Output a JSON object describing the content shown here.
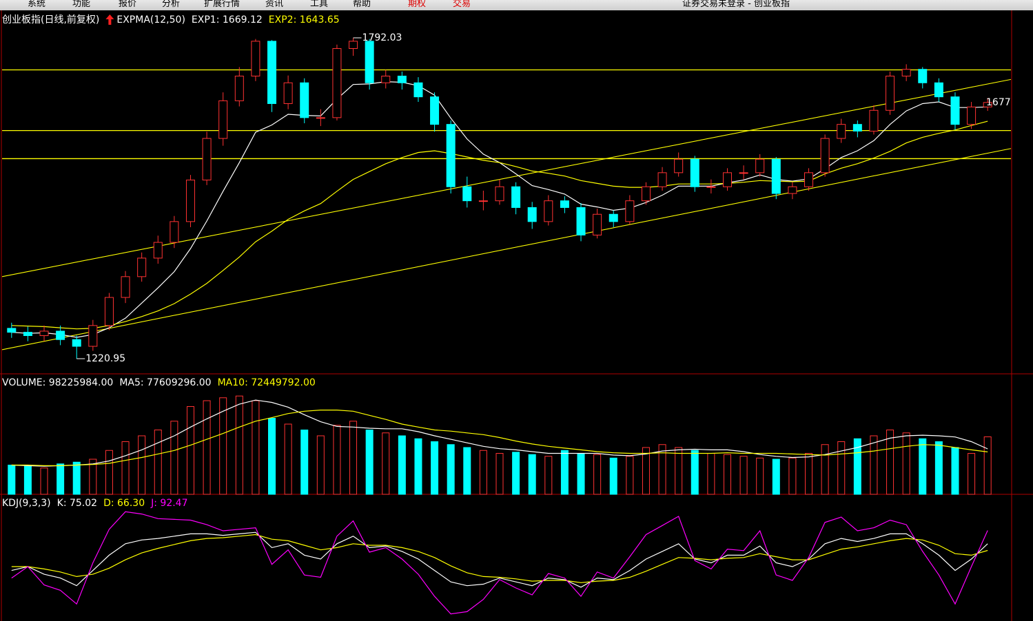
{
  "menu": {
    "items": [
      "系统",
      "功能",
      "报价",
      "分析",
      "扩展行情",
      "资讯",
      "工具",
      "帮助",
      "期权",
      "交易"
    ],
    "title": "证券交易未登录 - 创业板指"
  },
  "chart_data": [
    {
      "type": "candlestick",
      "title": "创业板指(日线,前复权)",
      "indicator": "EXPMA(12,50)",
      "ylim": [
        1194,
        1841
      ],
      "up_color": "#ff3232",
      "down_color": "#00ffff",
      "open": [
        1275,
        1268,
        1262,
        1270,
        1255,
        1243,
        1280,
        1330,
        1367,
        1400,
        1428,
        1465,
        1539,
        1613,
        1680,
        1724,
        1786,
        1675,
        1712,
        1650,
        1650,
        1773,
        1786,
        1712,
        1724,
        1712,
        1687,
        1638,
        1527,
        1502,
        1502,
        1527,
        1490,
        1465,
        1502,
        1490,
        1441,
        1478,
        1465,
        1502,
        1527,
        1552,
        1576,
        1527,
        1527,
        1552,
        1552,
        1576,
        1515,
        1527,
        1552,
        1613,
        1638,
        1626,
        1663,
        1724,
        1736,
        1712,
        1687,
        1638,
        1669
      ],
      "high": [
        1285,
        1278,
        1280,
        1280,
        1262,
        1290,
        1338,
        1377,
        1410,
        1440,
        1475,
        1548,
        1625,
        1695,
        1740,
        1790,
        1788,
        1725,
        1720,
        1665,
        1780,
        1792.03,
        1790,
        1735,
        1732,
        1722,
        1695,
        1645,
        1545,
        1520,
        1540,
        1535,
        1500,
        1512,
        1510,
        1498,
        1488,
        1485,
        1512,
        1535,
        1562,
        1588,
        1582,
        1540,
        1560,
        1565,
        1585,
        1580,
        1535,
        1560,
        1620,
        1648,
        1645,
        1672,
        1732,
        1745,
        1740,
        1720,
        1695,
        1678,
        1685
      ],
      "low": [
        1258,
        1252,
        1252,
        1245,
        1220.95,
        1235,
        1272,
        1320,
        1358,
        1390,
        1418,
        1455,
        1530,
        1600,
        1670,
        1715,
        1660,
        1665,
        1640,
        1635,
        1645,
        1760,
        1700,
        1702,
        1700,
        1678,
        1625,
        1515,
        1490,
        1485,
        1495,
        1478,
        1452,
        1458,
        1480,
        1430,
        1435,
        1455,
        1460,
        1495,
        1520,
        1545,
        1518,
        1515,
        1520,
        1540,
        1545,
        1505,
        1505,
        1520,
        1545,
        1605,
        1615,
        1620,
        1655,
        1715,
        1702,
        1678,
        1628,
        1630,
        1662
      ],
      "close": [
        1268,
        1262,
        1270,
        1255,
        1243,
        1280,
        1330,
        1367,
        1400,
        1428,
        1465,
        1539,
        1613,
        1680,
        1724,
        1786,
        1675,
        1712,
        1650,
        1650,
        1773,
        1786,
        1712,
        1724,
        1712,
        1687,
        1638,
        1527,
        1502,
        1502,
        1527,
        1490,
        1465,
        1502,
        1490,
        1441,
        1478,
        1465,
        1502,
        1527,
        1552,
        1576,
        1527,
        1527,
        1552,
        1552,
        1576,
        1515,
        1527,
        1552,
        1613,
        1638,
        1626,
        1663,
        1724,
        1736,
        1712,
        1687,
        1638,
        1669,
        1677
      ],
      "series": [
        {
          "name": "EXP1: 1669.12",
          "color": "#ffffff",
          "values": [
            1268,
            1266,
            1267,
            1264,
            1259,
            1264,
            1276,
            1293,
            1320,
            1347,
            1376,
            1417,
            1466,
            1519,
            1570,
            1624,
            1637,
            1656,
            1654,
            1653,
            1683,
            1709,
            1710,
            1714,
            1713,
            1707,
            1690,
            1649,
            1612,
            1585,
            1570,
            1550,
            1529,
            1522,
            1514,
            1496,
            1491,
            1485,
            1489,
            1499,
            1512,
            1528,
            1528,
            1528,
            1534,
            1539,
            1548,
            1540,
            1537,
            1541,
            1559,
            1579,
            1591,
            1609,
            1638,
            1662,
            1675,
            1678,
            1668,
            1668,
            1669.12
          ]
        },
        {
          "name": "EXP2: 1643.65",
          "color": "#ffff00",
          "values": [
            1280,
            1279,
            1278,
            1276,
            1274,
            1275,
            1280,
            1287,
            1296,
            1306,
            1319,
            1336,
            1355,
            1378,
            1402,
            1429,
            1448,
            1469,
            1484,
            1497,
            1519,
            1540,
            1554,
            1568,
            1579,
            1588,
            1591,
            1586,
            1580,
            1574,
            1570,
            1563,
            1555,
            1551,
            1546,
            1538,
            1533,
            1528,
            1526,
            1526,
            1528,
            1532,
            1532,
            1532,
            1533,
            1535,
            1538,
            1537,
            1536,
            1537,
            1550,
            1560,
            1568,
            1578,
            1590,
            1605,
            1615,
            1622,
            1628,
            1636,
            1643.65
          ]
        }
      ],
      "hlines": [
        1735,
        1627,
        1577
      ],
      "hline_color": "#ffff00",
      "trendlines": [
        [
          1367,
          1718
        ],
        [
          1237,
          1595
        ]
      ]
    },
    {
      "type": "volume",
      "title": "VOLUME: 98225984.00",
      "ylim": [
        0,
        200000000
      ],
      "values": [
        50000000,
        48000000,
        45000000,
        52000000,
        55000000,
        60000000,
        75000000,
        90000000,
        100000000,
        110000000,
        125000000,
        150000000,
        160000000,
        165000000,
        168000000,
        160000000,
        130000000,
        120000000,
        110000000,
        100000000,
        118000000,
        125000000,
        110000000,
        105000000,
        100000000,
        95000000,
        90000000,
        85000000,
        80000000,
        75000000,
        70000000,
        72000000,
        68000000,
        65000000,
        75000000,
        70000000,
        68000000,
        62000000,
        65000000,
        80000000,
        85000000,
        80000000,
        75000000,
        70000000,
        68000000,
        65000000,
        62000000,
        60000000,
        62000000,
        70000000,
        85000000,
        90000000,
        95000000,
        100000000,
        110000000,
        105000000,
        95000000,
        90000000,
        80000000,
        70000000,
        98225984
      ],
      "series": [
        {
          "name": "MA5: 77609296.00",
          "color": "#ffffff",
          "values": [
            50000000,
            49000000,
            48000000,
            49000000,
            50000000,
            52000000,
            57000000,
            66000000,
            76000000,
            88000000,
            100000000,
            115000000,
            129000000,
            142000000,
            154000000,
            161000000,
            157000000,
            149000000,
            136000000,
            124000000,
            116000000,
            115000000,
            113000000,
            112000000,
            112000000,
            107000000,
            100000000,
            94000000,
            88000000,
            82000000,
            78000000,
            76000000,
            73000000,
            70000000,
            70000000,
            70000000,
            70000000,
            67000000,
            66000000,
            69000000,
            74000000,
            76000000,
            77000000,
            76000000,
            76000000,
            73000000,
            68000000,
            65000000,
            63000000,
            64000000,
            68000000,
            74000000,
            80000000,
            88000000,
            96000000,
            100000000,
            101000000,
            100000000,
            98000000,
            90000000,
            77609296
          ]
        },
        {
          "name": "MA10: 72449792.00",
          "color": "#ffff00",
          "values": [
            50000000,
            50000000,
            49000000,
            49000000,
            50000000,
            51000000,
            53000000,
            58000000,
            63000000,
            69000000,
            75000000,
            84000000,
            94000000,
            104000000,
            115000000,
            125000000,
            131000000,
            138000000,
            142000000,
            144000000,
            144000000,
            142000000,
            135000000,
            128000000,
            120000000,
            115000000,
            110000000,
            108000000,
            105000000,
            102000000,
            97000000,
            91000000,
            86000000,
            82000000,
            79000000,
            76000000,
            73000000,
            71000000,
            70000000,
            70000000,
            71000000,
            70000000,
            70000000,
            70000000,
            71000000,
            70000000,
            70000000,
            70000000,
            69000000,
            68000000,
            67000000,
            69000000,
            71000000,
            74000000,
            78000000,
            82000000,
            85000000,
            84000000,
            80000000,
            76000000,
            72449792
          ]
        }
      ]
    },
    {
      "type": "kdj",
      "title": "KDJ(9,3,3)",
      "ylim": [
        -20,
        120
      ],
      "series": [
        {
          "name": "K: 75.02",
          "color": "#ffffff",
          "values": [
            40,
            45,
            35,
            30,
            20,
            40,
            60,
            75,
            80,
            82,
            85,
            88,
            88,
            86,
            88,
            90,
            70,
            75,
            60,
            55,
            75,
            85,
            70,
            72,
            65,
            55,
            40,
            25,
            20,
            22,
            30,
            25,
            20,
            30,
            28,
            18,
            30,
            28,
            40,
            55,
            65,
            75,
            55,
            50,
            60,
            60,
            72,
            50,
            45,
            55,
            75,
            82,
            78,
            82,
            88,
            88,
            75,
            60,
            40,
            55,
            75.02
          ]
        },
        {
          "name": "D: 66.30",
          "color": "#ffff00",
          "values": [
            45,
            45,
            42,
            38,
            32,
            35,
            43,
            54,
            63,
            69,
            74,
            79,
            82,
            83,
            85,
            87,
            81,
            79,
            73,
            67,
            70,
            75,
            73,
            73,
            70,
            65,
            57,
            46,
            37,
            32,
            31,
            29,
            26,
            27,
            27,
            24,
            26,
            27,
            31,
            39,
            48,
            57,
            56,
            54,
            56,
            57,
            62,
            58,
            54,
            54,
            61,
            68,
            71,
            75,
            79,
            82,
            80,
            73,
            62,
            60,
            66.3
          ]
        },
        {
          "name": "J: 92.47",
          "color": "#ff00ff",
          "values": [
            30,
            45,
            21,
            14,
            -4,
            50,
            94,
            117,
            114,
            108,
            107,
            106,
            100,
            92,
            94,
            96,
            48,
            67,
            34,
            31,
            85,
            105,
            64,
            70,
            55,
            35,
            6,
            -17,
            -14,
            2,
            28,
            17,
            8,
            36,
            30,
            6,
            38,
            30,
            58,
            87,
            99,
            111,
            53,
            42,
            68,
            66,
            92,
            34,
            27,
            57,
            103,
            110,
            92,
            96,
            106,
            100,
            65,
            34,
            -4,
            45,
            92.47
          ]
        }
      ]
    }
  ]
}
